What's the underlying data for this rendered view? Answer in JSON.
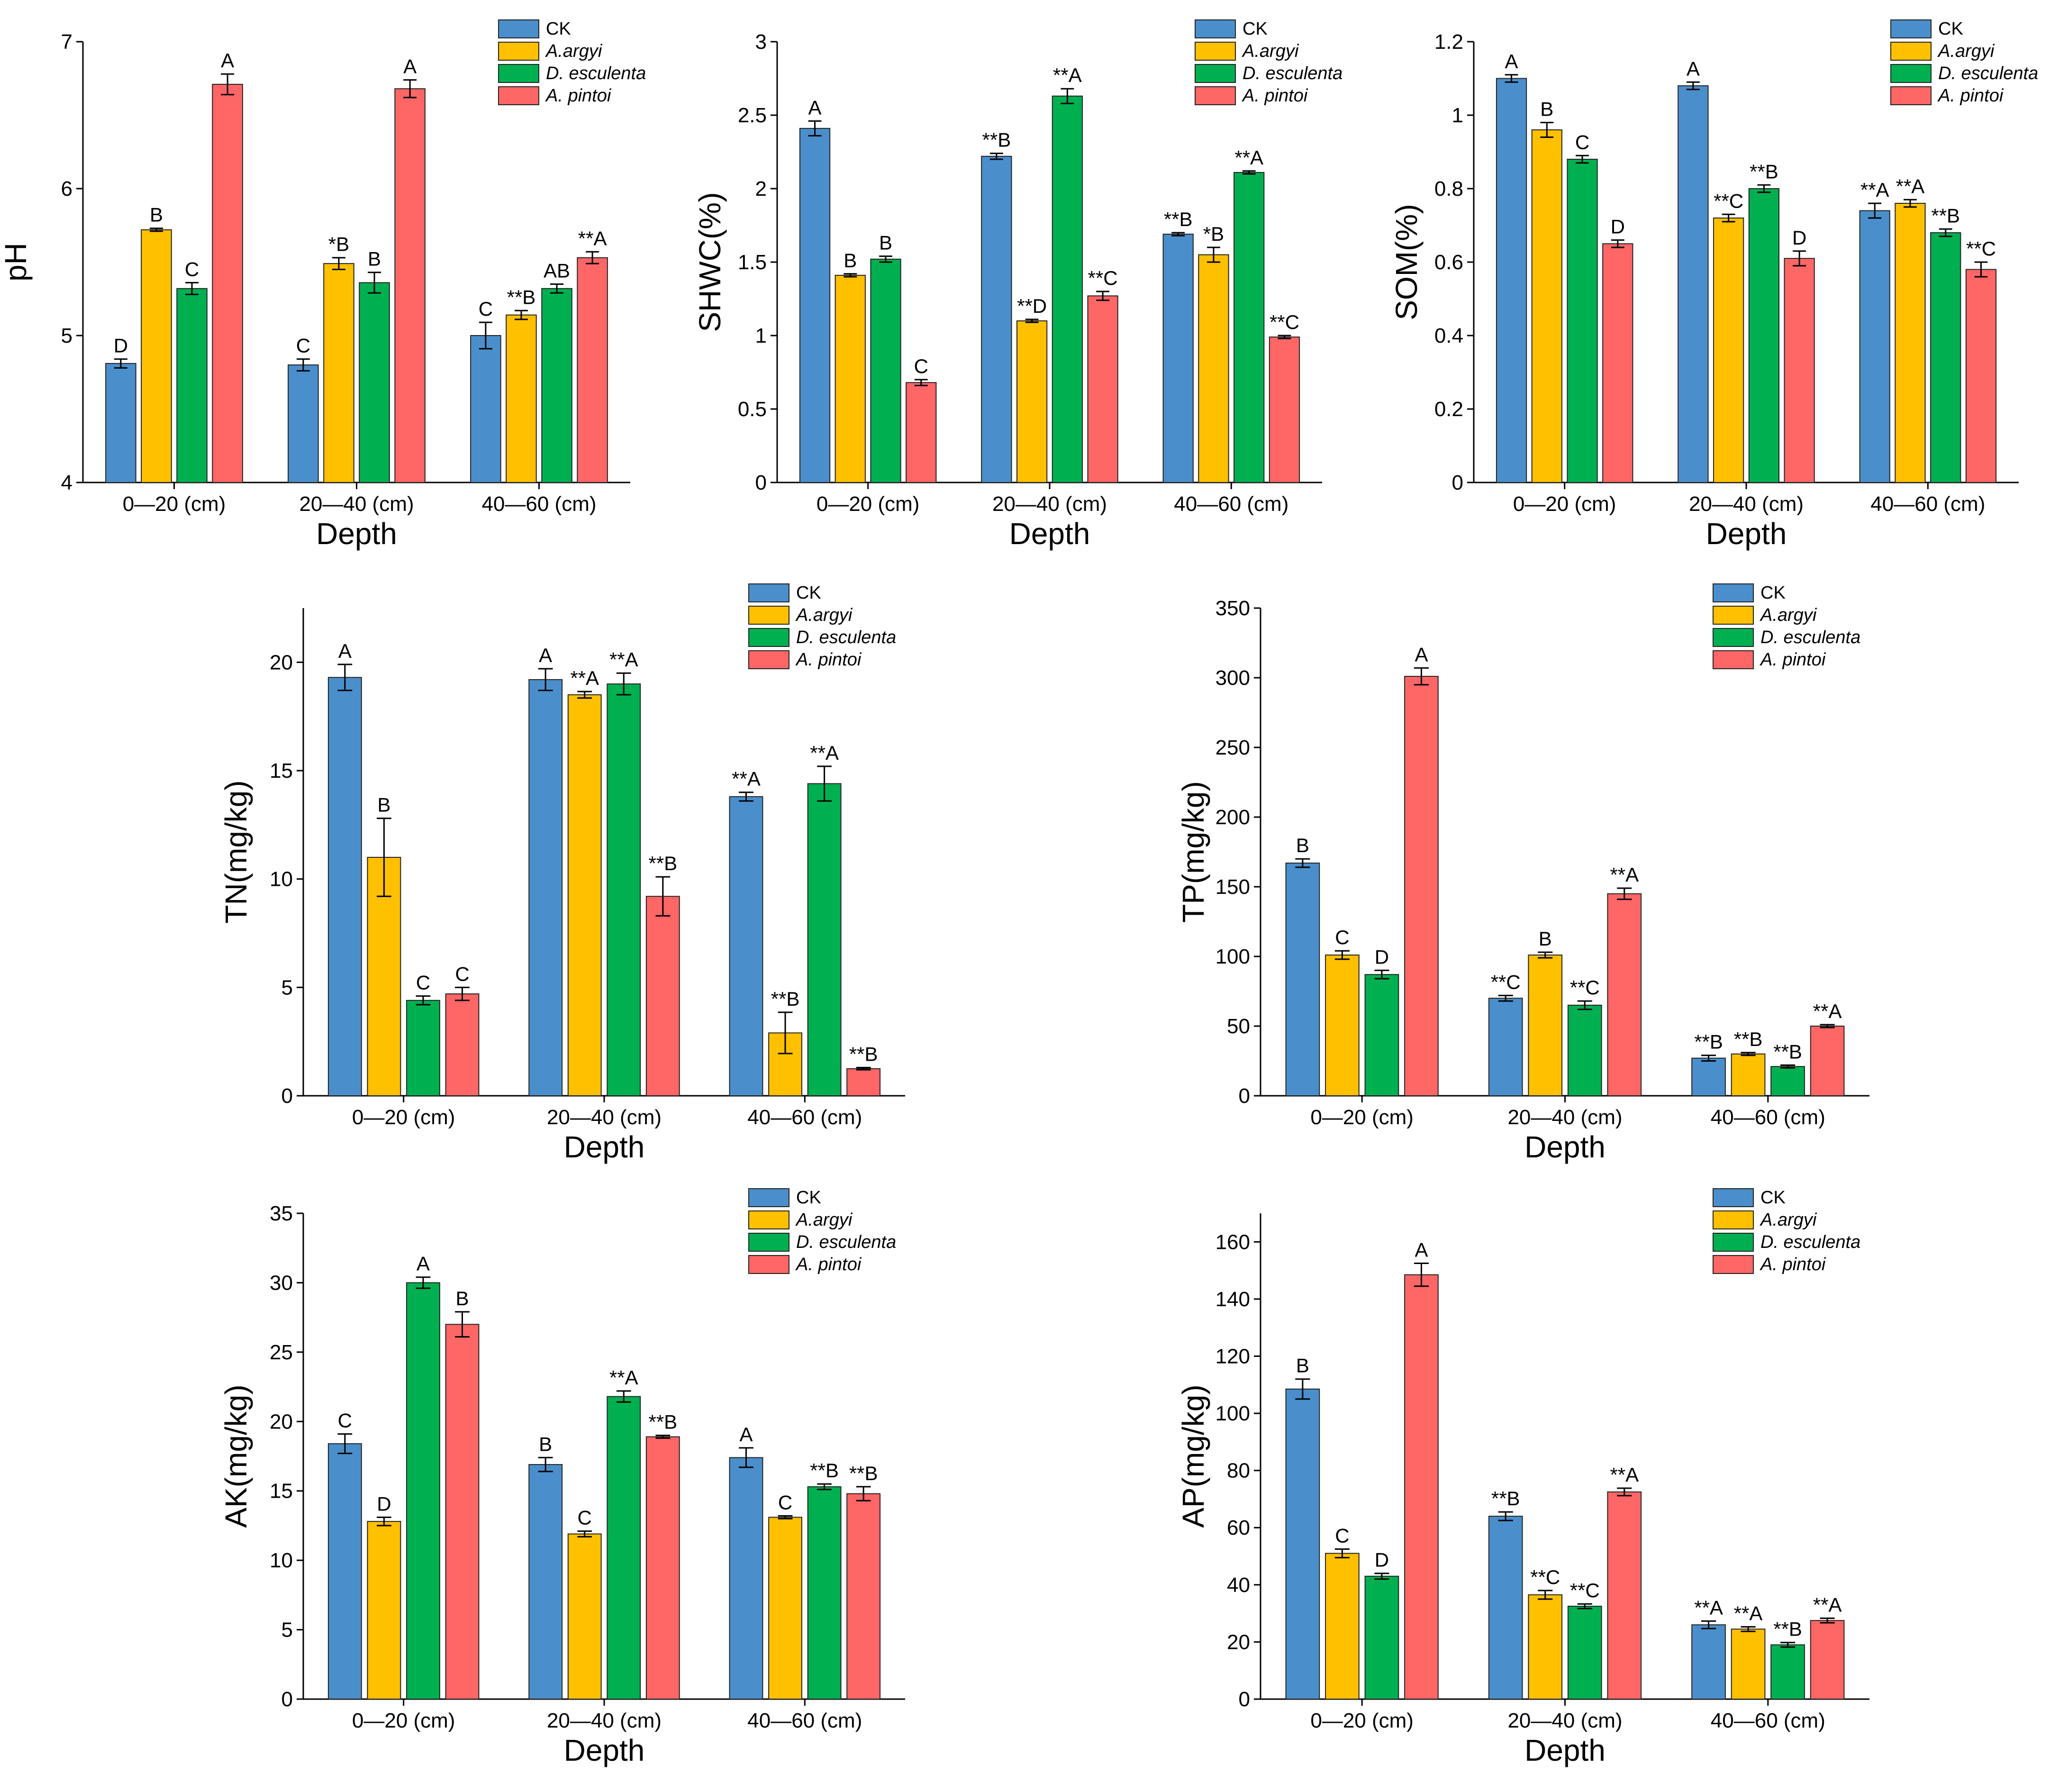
{
  "figure": {
    "colors": {
      "CK": "#4A8FCB",
      "A.argyi": "#FFC000",
      "D. esculenta": "#00B050",
      "A. pintoi": "#FF6666"
    }
  },
  "chart_data": [
    {
      "id": "ph",
      "type": "bar",
      "ylabel": "pH",
      "xlabel": "Depth",
      "categories": [
        "0—20 (cm)",
        "20—40 (cm)",
        "40—60 (cm)"
      ],
      "ylim": [
        4,
        7
      ],
      "yticks": [
        4,
        5,
        6,
        7
      ],
      "series": [
        {
          "name": "CK",
          "values": [
            4.81,
            4.8,
            5.0
          ],
          "errors": [
            0.03,
            0.04,
            0.09
          ],
          "labels": [
            "D",
            "C",
            "C"
          ]
        },
        {
          "name": "A.argyi",
          "values": [
            5.72,
            5.49,
            5.14
          ],
          "errors": [
            0.01,
            0.04,
            0.03
          ],
          "labels": [
            "B",
            "*B",
            "**B"
          ]
        },
        {
          "name": "D. esculenta",
          "values": [
            5.32,
            5.36,
            5.32
          ],
          "errors": [
            0.04,
            0.07,
            0.03
          ],
          "labels": [
            "C",
            "B",
            "AB"
          ]
        },
        {
          "name": "A. pintoi",
          "values": [
            6.71,
            6.68,
            5.53
          ],
          "errors": [
            0.07,
            0.06,
            0.04
          ],
          "labels": [
            "A",
            "A",
            "**A"
          ]
        }
      ]
    },
    {
      "id": "shwc",
      "type": "bar",
      "ylabel": "SHWC(%)",
      "xlabel": "Depth",
      "categories": [
        "0—20 (cm)",
        "20—40 (cm)",
        "40—60 (cm)"
      ],
      "ylim": [
        0,
        3
      ],
      "yticks": [
        0.0,
        0.5,
        1.0,
        1.5,
        2.0,
        2.5,
        3.0
      ],
      "series": [
        {
          "name": "CK",
          "values": [
            2.41,
            2.22,
            1.69
          ],
          "errors": [
            0.05,
            0.02,
            0.01
          ],
          "labels": [
            "A",
            "**B",
            "**B"
          ]
        },
        {
          "name": "A.argyi",
          "values": [
            1.41,
            1.1,
            1.55
          ],
          "errors": [
            0.01,
            0.01,
            0.05
          ],
          "labels": [
            "B",
            "**D",
            "*B"
          ]
        },
        {
          "name": "D. esculenta",
          "values": [
            1.52,
            2.63,
            2.11
          ],
          "errors": [
            0.02,
            0.05,
            0.01
          ],
          "labels": [
            "B",
            "**A",
            "**A"
          ]
        },
        {
          "name": "A. pintoi",
          "values": [
            0.68,
            1.27,
            0.99
          ],
          "errors": [
            0.02,
            0.03,
            0.01
          ],
          "labels": [
            "C",
            "**C",
            "**C"
          ]
        }
      ]
    },
    {
      "id": "som",
      "type": "bar",
      "ylabel": "SOM(%)",
      "xlabel": "Depth",
      "categories": [
        "0—20 (cm)",
        "20—40 (cm)",
        "40—60 (cm)"
      ],
      "ylim": [
        0,
        1.2
      ],
      "yticks": [
        0.0,
        0.2,
        0.4,
        0.6,
        0.8,
        1.0,
        1.2
      ],
      "series": [
        {
          "name": "CK",
          "values": [
            1.1,
            1.08,
            0.74
          ],
          "errors": [
            0.01,
            0.01,
            0.02
          ],
          "labels": [
            "A",
            "A",
            "**A"
          ]
        },
        {
          "name": "A.argyi",
          "values": [
            0.96,
            0.72,
            0.76
          ],
          "errors": [
            0.02,
            0.01,
            0.01
          ],
          "labels": [
            "B",
            "**C",
            "**A"
          ]
        },
        {
          "name": "D. esculenta",
          "values": [
            0.88,
            0.8,
            0.68
          ],
          "errors": [
            0.01,
            0.01,
            0.01
          ],
          "labels": [
            "C",
            "**B",
            "**B"
          ]
        },
        {
          "name": "A. pintoi",
          "values": [
            0.65,
            0.61,
            0.58
          ],
          "errors": [
            0.01,
            0.02,
            0.02
          ],
          "labels": [
            "D",
            "D",
            "**C"
          ]
        }
      ]
    },
    {
      "id": "tn",
      "type": "bar",
      "ylabel": "TN(mg/kg)",
      "xlabel": "Depth",
      "categories": [
        "0—20 (cm)",
        "20—40 (cm)",
        "40—60 (cm)"
      ],
      "ylim": [
        0,
        22.5
      ],
      "yticks": [
        0,
        5,
        10,
        15,
        20
      ],
      "series": [
        {
          "name": "CK",
          "values": [
            19.3,
            19.2,
            13.8
          ],
          "errors": [
            0.6,
            0.5,
            0.2
          ],
          "labels": [
            "A",
            "A",
            "**A"
          ]
        },
        {
          "name": "A.argyi",
          "values": [
            11.0,
            18.5,
            2.9
          ],
          "errors": [
            1.8,
            0.15,
            0.95
          ],
          "labels": [
            "B",
            "**A",
            "**B"
          ]
        },
        {
          "name": "D. esculenta",
          "values": [
            4.4,
            19.0,
            14.4
          ],
          "errors": [
            0.2,
            0.5,
            0.8
          ],
          "labels": [
            "C",
            "**A",
            "**A"
          ]
        },
        {
          "name": "A. pintoi",
          "values": [
            4.7,
            9.2,
            1.25
          ],
          "errors": [
            0.3,
            0.9,
            0.05
          ],
          "labels": [
            "C",
            "**B",
            "**B"
          ]
        }
      ]
    },
    {
      "id": "tp",
      "type": "bar",
      "ylabel": "TP(mg/kg)",
      "xlabel": "Depth",
      "categories": [
        "0—20 (cm)",
        "20—40 (cm)",
        "40—60 (cm)"
      ],
      "ylim": [
        0,
        350
      ],
      "yticks": [
        0,
        50,
        100,
        150,
        200,
        250,
        300,
        350
      ],
      "series": [
        {
          "name": "CK",
          "values": [
            167,
            70,
            27
          ],
          "errors": [
            3,
            2,
            2
          ],
          "labels": [
            "B",
            "**C",
            "**B"
          ]
        },
        {
          "name": "A.argyi",
          "values": [
            101,
            101,
            30
          ],
          "errors": [
            3,
            2,
            1
          ],
          "labels": [
            "C",
            "B",
            "**B"
          ]
        },
        {
          "name": "D. esculenta",
          "values": [
            87,
            65,
            21
          ],
          "errors": [
            3,
            3,
            1
          ],
          "labels": [
            "D",
            "**C",
            "**B"
          ]
        },
        {
          "name": "A. pintoi",
          "values": [
            301,
            145,
            50
          ],
          "errors": [
            6,
            4,
            1
          ],
          "labels": [
            "A",
            "**A",
            "**A"
          ]
        }
      ]
    },
    {
      "id": "ak",
      "type": "bar",
      "ylabel": "AK(mg/kg)",
      "xlabel": "Depth",
      "categories": [
        "0—20 (cm)",
        "20—40 (cm)",
        "40—60 (cm)"
      ],
      "ylim": [
        0,
        35
      ],
      "yticks": [
        0,
        5,
        10,
        15,
        20,
        25,
        30,
        35
      ],
      "series": [
        {
          "name": "CK",
          "values": [
            18.4,
            16.9,
            17.4
          ],
          "errors": [
            0.7,
            0.5,
            0.7
          ],
          "labels": [
            "C",
            "B",
            "A"
          ]
        },
        {
          "name": "A.argyi",
          "values": [
            12.8,
            11.9,
            13.1
          ],
          "errors": [
            0.3,
            0.2,
            0.1
          ],
          "labels": [
            "D",
            "C",
            "C"
          ]
        },
        {
          "name": "D. esculenta",
          "values": [
            30.0,
            21.8,
            15.3
          ],
          "errors": [
            0.4,
            0.4,
            0.2
          ],
          "labels": [
            "A",
            "**A",
            "**B"
          ]
        },
        {
          "name": "A. pintoi",
          "values": [
            27.0,
            18.9,
            14.8
          ],
          "errors": [
            0.9,
            0.1,
            0.5
          ],
          "labels": [
            "B",
            "**B",
            "**B"
          ]
        }
      ]
    },
    {
      "id": "ap",
      "type": "bar",
      "ylabel": "AP(mg/kg)",
      "xlabel": "Depth",
      "categories": [
        "0—20 (cm)",
        "20—40 (cm)",
        "40—60 (cm)"
      ],
      "ylim": [
        0,
        170
      ],
      "yticks": [
        0,
        20,
        40,
        60,
        80,
        100,
        120,
        140,
        160
      ],
      "series": [
        {
          "name": "CK",
          "values": [
            108.5,
            64,
            26
          ],
          "errors": [
            3.5,
            1.5,
            1.3
          ],
          "labels": [
            "B",
            "**B",
            "**A"
          ]
        },
        {
          "name": "A.argyi",
          "values": [
            51,
            36.5,
            24.5
          ],
          "errors": [
            1.5,
            1.5,
            0.8
          ],
          "labels": [
            "C",
            "**C",
            "**A"
          ]
        },
        {
          "name": "D. esculenta",
          "values": [
            43,
            32.5,
            19
          ],
          "errors": [
            1.0,
            0.8,
            0.8
          ],
          "labels": [
            "D",
            "**C",
            "**B"
          ]
        },
        {
          "name": "A. pintoi",
          "values": [
            148.5,
            72.5,
            27.5
          ],
          "errors": [
            4.0,
            1.3,
            0.8
          ],
          "labels": [
            "A",
            "**A",
            "**A"
          ]
        }
      ]
    }
  ]
}
